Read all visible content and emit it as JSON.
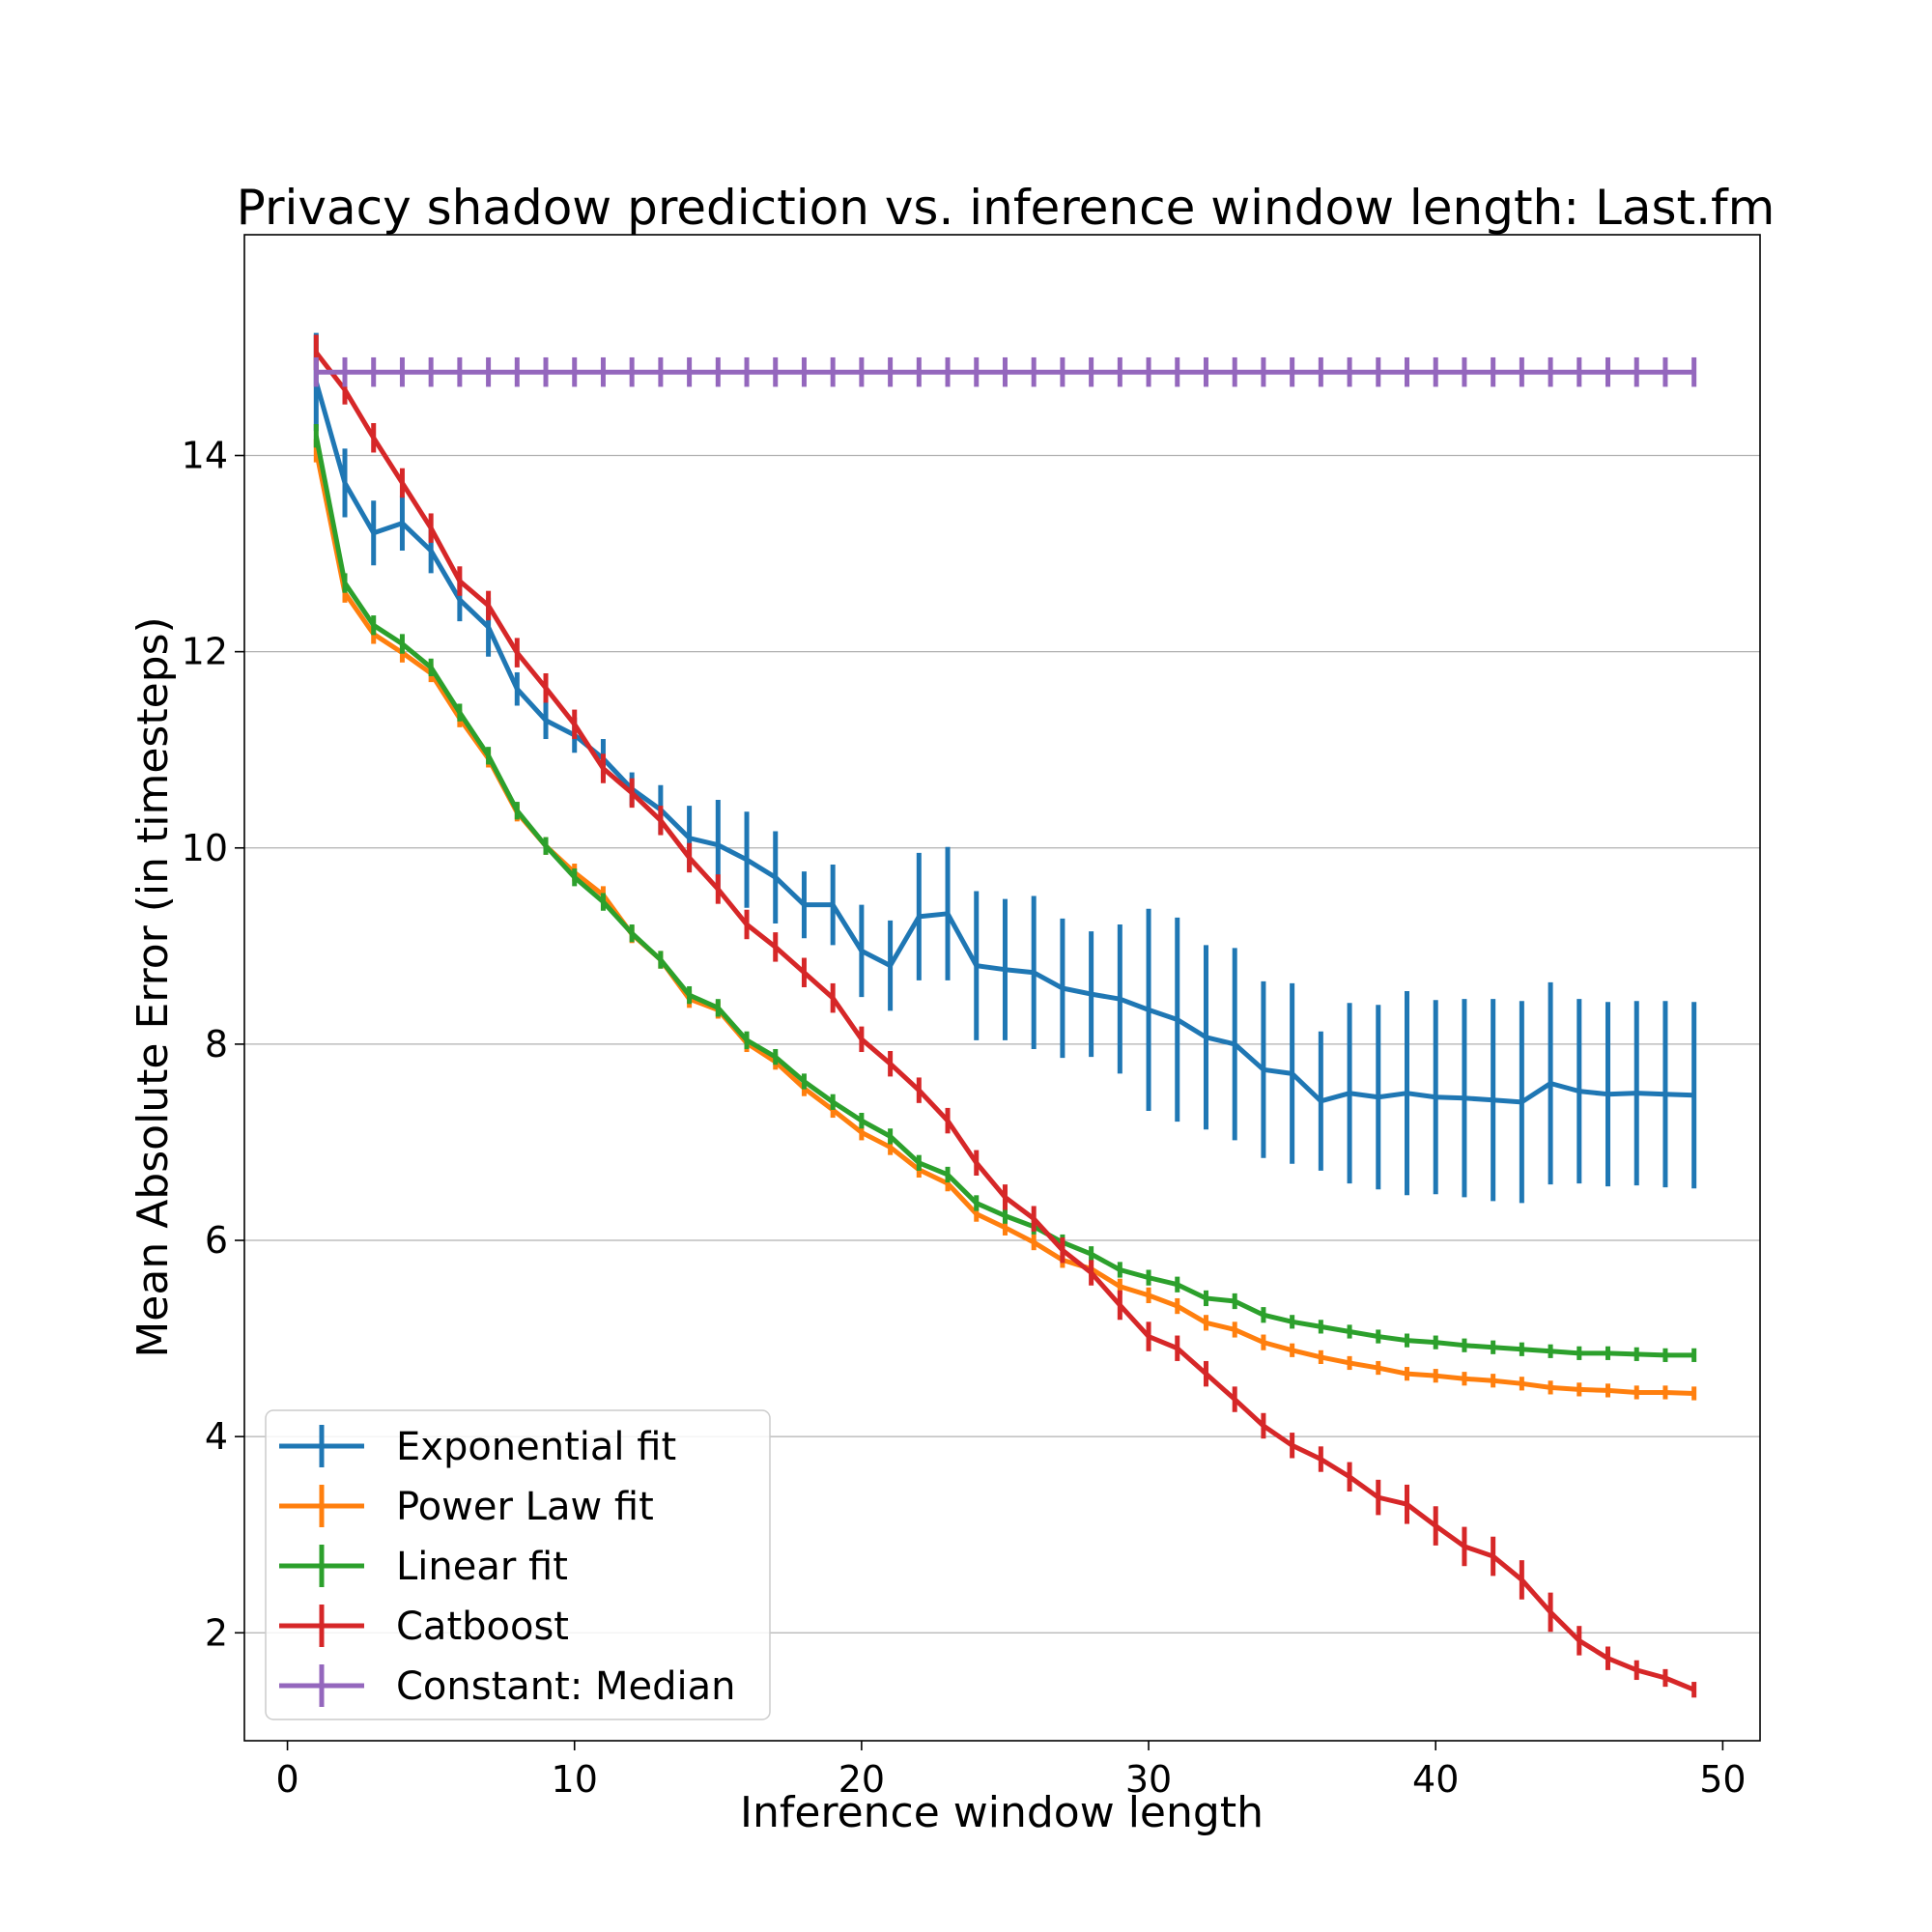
{
  "chart_data": {
    "type": "line",
    "title": "Privacy shadow prediction vs. inference window length: Last.fm",
    "xlabel": "Inference window length",
    "ylabel": "Mean Absolute Error (in timesteps)",
    "xlim": [
      -1.5,
      51.3
    ],
    "ylim": [
      0.9,
      16.25
    ],
    "x_ticks": [
      0,
      10,
      20,
      30,
      40,
      50
    ],
    "y_ticks": [
      2,
      4,
      6,
      8,
      10,
      12,
      14
    ],
    "grid": "y-major",
    "legend_position": "lower-left",
    "x": [
      1,
      2,
      3,
      4,
      5,
      6,
      7,
      8,
      9,
      10,
      11,
      12,
      13,
      14,
      15,
      16,
      17,
      18,
      19,
      20,
      21,
      22,
      23,
      24,
      25,
      26,
      27,
      28,
      29,
      30,
      31,
      32,
      33,
      34,
      35,
      36,
      37,
      38,
      39,
      40,
      41,
      42,
      43,
      44,
      45,
      46,
      47,
      48,
      49
    ],
    "series": [
      {
        "name": "Exponential fit",
        "color": "#1f77b4",
        "values": [
          14.75,
          13.72,
          13.21,
          13.31,
          13.03,
          12.53,
          12.25,
          11.62,
          11.3,
          11.15,
          10.91,
          10.6,
          10.39,
          10.1,
          10.03,
          9.88,
          9.7,
          9.42,
          9.42,
          8.95,
          8.8,
          9.3,
          9.33,
          8.8,
          8.76,
          8.73,
          8.57,
          8.51,
          8.46,
          8.35,
          8.25,
          8.07,
          8.0,
          7.74,
          7.7,
          7.42,
          7.5,
          7.46,
          7.5,
          7.46,
          7.45,
          7.43,
          7.41,
          7.6,
          7.52,
          7.49,
          7.5,
          7.49,
          7.48
        ],
        "errors": [
          0.5,
          0.35,
          0.33,
          0.28,
          0.23,
          0.22,
          0.3,
          0.17,
          0.19,
          0.18,
          0.2,
          0.17,
          0.25,
          0.33,
          0.46,
          0.49,
          0.47,
          0.34,
          0.41,
          0.47,
          0.46,
          0.65,
          0.68,
          0.76,
          0.72,
          0.78,
          0.71,
          0.64,
          0.76,
          1.03,
          1.04,
          0.94,
          0.98,
          0.9,
          0.92,
          0.71,
          0.92,
          0.94,
          1.04,
          0.99,
          1.01,
          1.03,
          1.03,
          1.03,
          0.94,
          0.94,
          0.94,
          0.95,
          0.95
        ]
      },
      {
        "name": "Power Law fit",
        "color": "#ff7f0e",
        "values": [
          14.05,
          12.6,
          12.18,
          11.99,
          11.78,
          11.32,
          10.91,
          10.36,
          10.02,
          9.75,
          9.52,
          9.12,
          8.86,
          8.46,
          8.35,
          8.01,
          7.82,
          7.55,
          7.33,
          7.1,
          6.95,
          6.72,
          6.58,
          6.27,
          6.13,
          5.98,
          5.8,
          5.71,
          5.53,
          5.44,
          5.33,
          5.16,
          5.09,
          4.96,
          4.88,
          4.81,
          4.75,
          4.7,
          4.64,
          4.62,
          4.59,
          4.57,
          4.54,
          4.5,
          4.48,
          4.47,
          4.45,
          4.45,
          4.44
        ],
        "errors": [
          0.12,
          0.1,
          0.1,
          0.1,
          0.09,
          0.09,
          0.09,
          0.09,
          0.09,
          0.09,
          0.09,
          0.09,
          0.09,
          0.09,
          0.09,
          0.09,
          0.08,
          0.08,
          0.08,
          0.08,
          0.08,
          0.08,
          0.08,
          0.08,
          0.08,
          0.08,
          0.08,
          0.08,
          0.08,
          0.08,
          0.08,
          0.08,
          0.08,
          0.08,
          0.07,
          0.07,
          0.07,
          0.07,
          0.07,
          0.07,
          0.07,
          0.07,
          0.07,
          0.07,
          0.07,
          0.07,
          0.07,
          0.07,
          0.07
        ]
      },
      {
        "name": "Linear fit",
        "color": "#2ca02c",
        "values": [
          14.2,
          12.7,
          12.27,
          12.08,
          11.84,
          11.38,
          10.94,
          10.38,
          10.02,
          9.7,
          9.45,
          9.13,
          8.86,
          8.5,
          8.37,
          8.04,
          7.87,
          7.62,
          7.41,
          7.22,
          7.06,
          6.79,
          6.67,
          6.38,
          6.25,
          6.14,
          5.98,
          5.86,
          5.7,
          5.62,
          5.55,
          5.41,
          5.38,
          5.24,
          5.17,
          5.12,
          5.07,
          5.02,
          4.98,
          4.96,
          4.93,
          4.91,
          4.89,
          4.87,
          4.85,
          4.85,
          4.84,
          4.83,
          4.83
        ],
        "errors": [
          0.12,
          0.1,
          0.1,
          0.1,
          0.09,
          0.09,
          0.09,
          0.09,
          0.09,
          0.09,
          0.09,
          0.09,
          0.09,
          0.09,
          0.09,
          0.09,
          0.08,
          0.08,
          0.08,
          0.08,
          0.08,
          0.08,
          0.08,
          0.08,
          0.08,
          0.08,
          0.08,
          0.08,
          0.08,
          0.08,
          0.08,
          0.08,
          0.08,
          0.08,
          0.07,
          0.07,
          0.07,
          0.07,
          0.07,
          0.07,
          0.07,
          0.07,
          0.07,
          0.07,
          0.07,
          0.07,
          0.07,
          0.07,
          0.07
        ]
      },
      {
        "name": "Catboost",
        "color": "#d62728",
        "values": [
          15.05,
          14.67,
          14.18,
          13.72,
          13.26,
          12.72,
          12.47,
          11.99,
          11.63,
          11.26,
          10.81,
          10.56,
          10.28,
          9.9,
          9.58,
          9.22,
          8.99,
          8.73,
          8.47,
          8.05,
          7.8,
          7.53,
          7.22,
          6.79,
          6.44,
          6.22,
          5.9,
          5.67,
          5.34,
          5.02,
          4.9,
          4.64,
          4.38,
          4.11,
          3.91,
          3.77,
          3.59,
          3.38,
          3.31,
          3.09,
          2.88,
          2.78,
          2.54,
          2.21,
          1.92,
          1.74,
          1.62,
          1.54,
          1.42
        ],
        "errors": [
          0.18,
          0.15,
          0.15,
          0.15,
          0.15,
          0.15,
          0.15,
          0.15,
          0.15,
          0.15,
          0.15,
          0.15,
          0.15,
          0.15,
          0.15,
          0.15,
          0.15,
          0.15,
          0.15,
          0.13,
          0.13,
          0.13,
          0.13,
          0.13,
          0.13,
          0.13,
          0.13,
          0.13,
          0.15,
          0.15,
          0.13,
          0.13,
          0.13,
          0.13,
          0.13,
          0.13,
          0.15,
          0.18,
          0.2,
          0.2,
          0.2,
          0.2,
          0.2,
          0.2,
          0.15,
          0.12,
          0.1,
          0.09,
          0.08
        ]
      },
      {
        "name": "Constant: Median",
        "color": "#9467bd",
        "values": [
          14.85,
          14.85,
          14.85,
          14.85,
          14.85,
          14.85,
          14.85,
          14.85,
          14.85,
          14.85,
          14.85,
          14.85,
          14.85,
          14.85,
          14.85,
          14.85,
          14.85,
          14.85,
          14.85,
          14.85,
          14.85,
          14.85,
          14.85,
          14.85,
          14.85,
          14.85,
          14.85,
          14.85,
          14.85,
          14.85,
          14.85,
          14.85,
          14.85,
          14.85,
          14.85,
          14.85,
          14.85,
          14.85,
          14.85,
          14.85,
          14.85,
          14.85,
          14.85,
          14.85,
          14.85,
          14.85,
          14.85,
          14.85,
          14.85
        ],
        "errors": [
          0.15,
          0.15,
          0.15,
          0.15,
          0.15,
          0.15,
          0.15,
          0.15,
          0.15,
          0.15,
          0.15,
          0.15,
          0.15,
          0.15,
          0.15,
          0.15,
          0.15,
          0.15,
          0.15,
          0.15,
          0.15,
          0.15,
          0.15,
          0.15,
          0.15,
          0.15,
          0.15,
          0.15,
          0.15,
          0.15,
          0.15,
          0.15,
          0.15,
          0.15,
          0.15,
          0.15,
          0.15,
          0.15,
          0.15,
          0.15,
          0.15,
          0.15,
          0.15,
          0.15,
          0.15,
          0.15,
          0.15,
          0.15,
          0.15
        ]
      }
    ]
  }
}
